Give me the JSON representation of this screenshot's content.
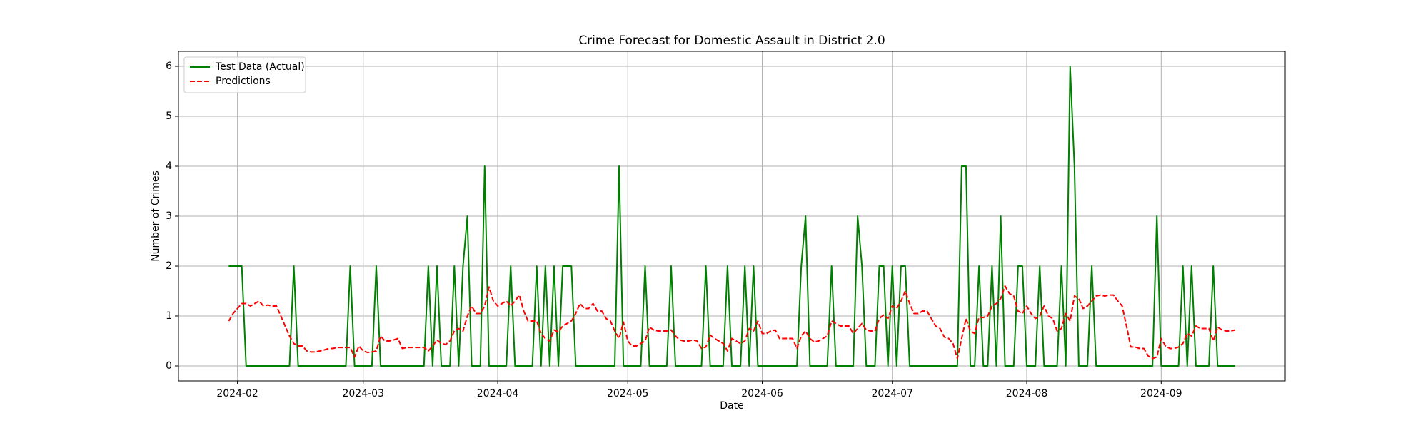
{
  "chart_data": {
    "type": "line",
    "title": "Crime Forecast for Domestic Assault in District 2.0",
    "xlabel": "Date",
    "ylabel": "Number of Crimes",
    "x": [
      "2024-01-30",
      "2024-01-31",
      "2024-02-01",
      "2024-02-02",
      "2024-02-03",
      "2024-02-04",
      "2024-02-05",
      "2024-02-06",
      "2024-02-07",
      "2024-02-08",
      "2024-02-09",
      "2024-02-10",
      "2024-02-11",
      "2024-02-12",
      "2024-02-13",
      "2024-02-14",
      "2024-02-15",
      "2024-02-16",
      "2024-02-17",
      "2024-02-18",
      "2024-02-19",
      "2024-02-20",
      "2024-02-21",
      "2024-02-22",
      "2024-02-23",
      "2024-02-24",
      "2024-02-25",
      "2024-02-26",
      "2024-02-27",
      "2024-02-28",
      "2024-02-29",
      "2024-03-01",
      "2024-03-02",
      "2024-03-03",
      "2024-03-04",
      "2024-03-05",
      "2024-03-06",
      "2024-03-07",
      "2024-03-08",
      "2024-03-09",
      "2024-03-10",
      "2024-03-11",
      "2024-03-12",
      "2024-03-13",
      "2024-03-14",
      "2024-03-15",
      "2024-03-16",
      "2024-03-17",
      "2024-03-18",
      "2024-03-19",
      "2024-03-20",
      "2024-03-21",
      "2024-03-22",
      "2024-03-23",
      "2024-03-24",
      "2024-03-25",
      "2024-03-26",
      "2024-03-27",
      "2024-03-28",
      "2024-03-29",
      "2024-03-30",
      "2024-03-31",
      "2024-04-01",
      "2024-04-02",
      "2024-04-03",
      "2024-04-04",
      "2024-04-05",
      "2024-04-06",
      "2024-04-07",
      "2024-04-08",
      "2024-04-09",
      "2024-04-10",
      "2024-04-11",
      "2024-04-12",
      "2024-04-13",
      "2024-04-14",
      "2024-04-15",
      "2024-04-16",
      "2024-04-17",
      "2024-04-18",
      "2024-04-19",
      "2024-04-20",
      "2024-04-21",
      "2024-04-22",
      "2024-04-23",
      "2024-04-24",
      "2024-04-25",
      "2024-04-26",
      "2024-04-27",
      "2024-04-28",
      "2024-04-29",
      "2024-04-30",
      "2024-05-01",
      "2024-05-02",
      "2024-05-03",
      "2024-05-04",
      "2024-05-05",
      "2024-05-06",
      "2024-05-07",
      "2024-05-08",
      "2024-05-09",
      "2024-05-10",
      "2024-05-11",
      "2024-05-12",
      "2024-05-13",
      "2024-05-14",
      "2024-05-15",
      "2024-05-16",
      "2024-05-17",
      "2024-05-18",
      "2024-05-19",
      "2024-05-20",
      "2024-05-21",
      "2024-05-22",
      "2024-05-23",
      "2024-05-24",
      "2024-05-25",
      "2024-05-26",
      "2024-05-27",
      "2024-05-28",
      "2024-05-29",
      "2024-05-30",
      "2024-05-31",
      "2024-06-01",
      "2024-06-02",
      "2024-06-03",
      "2024-06-04",
      "2024-06-05",
      "2024-06-06",
      "2024-06-07",
      "2024-06-08",
      "2024-06-09",
      "2024-06-10",
      "2024-06-11",
      "2024-06-12",
      "2024-06-13",
      "2024-06-14",
      "2024-06-15",
      "2024-06-16",
      "2024-06-17",
      "2024-06-18",
      "2024-06-19",
      "2024-06-20",
      "2024-06-21",
      "2024-06-22",
      "2024-06-23",
      "2024-06-24",
      "2024-06-25",
      "2024-06-26",
      "2024-06-27",
      "2024-06-28",
      "2024-06-29",
      "2024-06-30",
      "2024-07-01",
      "2024-07-02",
      "2024-07-03",
      "2024-07-04",
      "2024-07-05",
      "2024-07-06",
      "2024-07-07",
      "2024-07-08",
      "2024-07-09",
      "2024-07-10",
      "2024-07-11",
      "2024-07-12",
      "2024-07-13",
      "2024-07-14",
      "2024-07-15",
      "2024-07-16",
      "2024-07-17",
      "2024-07-18",
      "2024-07-19",
      "2024-07-20",
      "2024-07-21",
      "2024-07-22",
      "2024-07-23",
      "2024-07-24",
      "2024-07-25",
      "2024-07-26",
      "2024-07-27",
      "2024-07-28",
      "2024-07-29",
      "2024-07-30",
      "2024-07-31",
      "2024-08-01",
      "2024-08-02",
      "2024-08-03",
      "2024-08-04",
      "2024-08-05",
      "2024-08-06",
      "2024-08-07",
      "2024-08-08",
      "2024-08-09",
      "2024-08-10",
      "2024-08-11",
      "2024-08-12",
      "2024-08-13",
      "2024-08-14",
      "2024-08-15",
      "2024-08-16",
      "2024-08-17",
      "2024-08-18",
      "2024-08-19",
      "2024-08-20",
      "2024-08-21",
      "2024-08-22",
      "2024-08-23",
      "2024-08-24",
      "2024-08-25",
      "2024-08-26",
      "2024-08-27",
      "2024-08-28",
      "2024-08-29",
      "2024-08-30",
      "2024-08-31",
      "2024-09-01",
      "2024-09-02",
      "2024-09-03",
      "2024-09-04",
      "2024-09-05",
      "2024-09-06",
      "2024-09-07",
      "2024-09-08",
      "2024-09-09",
      "2024-09-10",
      "2024-09-11",
      "2024-09-12",
      "2024-09-13",
      "2024-09-14",
      "2024-09-15",
      "2024-09-16",
      "2024-09-17",
      "2024-09-18"
    ],
    "series": [
      {
        "name": "Test Data (Actual)",
        "color": "#008000",
        "dash": "solid",
        "values": [
          2,
          2,
          2,
          2,
          0,
          0,
          0,
          0,
          0,
          0,
          0,
          0,
          0,
          0,
          0,
          2,
          0,
          0,
          0,
          0,
          0,
          0,
          0,
          0,
          0,
          0,
          0,
          0,
          2,
          0,
          0,
          0,
          0,
          0,
          2,
          0,
          0,
          0,
          0,
          0,
          0,
          0,
          0,
          0,
          0,
          0,
          2,
          0,
          2,
          0,
          0,
          0,
          2,
          0,
          2,
          3,
          0,
          0,
          0,
          4,
          0,
          0,
          0,
          0,
          0,
          2,
          0,
          0,
          0,
          0,
          0,
          2,
          0,
          2,
          0,
          2,
          0,
          2,
          2,
          2,
          0,
          0,
          0,
          0,
          0,
          0,
          0,
          0,
          0,
          0,
          4,
          0,
          0,
          0,
          0,
          0,
          2,
          0,
          0,
          0,
          0,
          0,
          2,
          0,
          0,
          0,
          0,
          0,
          0,
          0,
          2,
          0,
          0,
          0,
          0,
          2,
          0,
          0,
          0,
          2,
          0,
          2,
          0,
          0,
          0,
          0,
          0,
          0,
          0,
          0,
          0,
          0,
          2,
          3,
          0,
          0,
          0,
          0,
          0,
          2,
          0,
          0,
          0,
          0,
          0,
          3,
          2,
          0,
          0,
          0,
          2,
          2,
          0,
          2,
          0,
          2,
          2,
          0,
          0,
          0,
          0,
          0,
          0,
          0,
          0,
          0,
          0,
          0,
          0,
          4,
          4,
          0,
          0,
          2,
          0,
          0,
          2,
          0,
          3,
          0,
          0,
          0,
          2,
          2,
          0,
          0,
          0,
          2,
          0,
          0,
          0,
          0,
          2,
          0,
          6,
          4,
          0,
          0,
          0,
          2,
          0,
          0,
          0,
          0,
          0,
          0,
          0,
          0,
          0,
          0,
          0,
          0,
          0,
          0,
          3,
          0,
          0,
          0,
          0,
          0,
          2,
          0,
          2,
          0,
          0,
          0,
          0,
          2,
          0,
          0,
          0,
          0,
          0
        ]
      },
      {
        "name": "Predictions",
        "color": "#ff0000",
        "dash": "dashed",
        "values": [
          0.9,
          1.05,
          1.15,
          1.25,
          1.25,
          1.2,
          1.25,
          1.3,
          1.2,
          1.22,
          1.2,
          1.2,
          1.0,
          0.8,
          0.6,
          0.45,
          0.4,
          0.4,
          0.3,
          0.28,
          0.28,
          0.3,
          0.32,
          0.35,
          0.35,
          0.37,
          0.37,
          0.37,
          0.37,
          0.18,
          0.4,
          0.3,
          0.27,
          0.28,
          0.3,
          0.6,
          0.5,
          0.5,
          0.52,
          0.55,
          0.35,
          0.37,
          0.37,
          0.37,
          0.37,
          0.37,
          0.3,
          0.4,
          0.52,
          0.45,
          0.43,
          0.5,
          0.7,
          0.75,
          0.7,
          1.0,
          1.2,
          1.05,
          1.05,
          1.2,
          1.58,
          1.3,
          1.2,
          1.25,
          1.3,
          1.2,
          1.3,
          1.42,
          1.1,
          0.9,
          0.9,
          0.9,
          0.65,
          0.55,
          0.5,
          0.72,
          0.68,
          0.8,
          0.85,
          0.9,
          1.05,
          1.25,
          1.15,
          1.15,
          1.25,
          1.1,
          1.1,
          0.95,
          0.9,
          0.7,
          0.55,
          0.88,
          0.5,
          0.4,
          0.4,
          0.45,
          0.5,
          0.78,
          0.72,
          0.7,
          0.7,
          0.7,
          0.72,
          0.6,
          0.52,
          0.5,
          0.5,
          0.52,
          0.5,
          0.35,
          0.38,
          0.62,
          0.55,
          0.5,
          0.45,
          0.3,
          0.55,
          0.5,
          0.45,
          0.5,
          0.75,
          0.7,
          0.9,
          0.65,
          0.65,
          0.7,
          0.72,
          0.55,
          0.55,
          0.55,
          0.55,
          0.35,
          0.6,
          0.7,
          0.55,
          0.48,
          0.5,
          0.55,
          0.6,
          0.9,
          0.85,
          0.8,
          0.8,
          0.8,
          0.65,
          0.75,
          0.85,
          0.72,
          0.7,
          0.7,
          0.95,
          1.02,
          0.95,
          1.2,
          1.15,
          1.3,
          1.5,
          1.25,
          1.05,
          1.05,
          1.1,
          1.1,
          0.95,
          0.8,
          0.75,
          0.58,
          0.55,
          0.45,
          0.15,
          0.55,
          0.95,
          0.7,
          0.65,
          0.98,
          0.97,
          1.0,
          1.2,
          1.25,
          1.35,
          1.6,
          1.45,
          1.4,
          1.1,
          1.05,
          1.2,
          1.05,
          0.95,
          1.0,
          1.2,
          1.0,
          0.95,
          0.7,
          0.75,
          1.05,
          0.9,
          1.4,
          1.35,
          1.15,
          1.2,
          1.3,
          1.4,
          1.42,
          1.4,
          1.42,
          1.42,
          1.3,
          1.2,
          0.8,
          0.38,
          0.38,
          0.35,
          0.35,
          0.2,
          0.15,
          0.18,
          0.55,
          0.4,
          0.35,
          0.35,
          0.38,
          0.45,
          0.65,
          0.6,
          0.8,
          0.75,
          0.75,
          0.75,
          0.5,
          0.78,
          0.72,
          0.7,
          0.7,
          0.72
        ]
      }
    ],
    "xlim": [
      "2024-01-18T09:36:00Z",
      "2024-09-29T14:24:00Z"
    ],
    "xticks": [
      {
        "value": "2024-02-01",
        "label": "2024-02"
      },
      {
        "value": "2024-03-01",
        "label": "2024-03"
      },
      {
        "value": "2024-04-01",
        "label": "2024-04"
      },
      {
        "value": "2024-05-01",
        "label": "2024-05"
      },
      {
        "value": "2024-06-01",
        "label": "2024-06"
      },
      {
        "value": "2024-07-01",
        "label": "2024-07"
      },
      {
        "value": "2024-08-01",
        "label": "2024-08"
      },
      {
        "value": "2024-09-01",
        "label": "2024-09"
      }
    ],
    "ylim": [
      -0.3,
      6.3
    ],
    "yticks": [
      0,
      1,
      2,
      3,
      4,
      5,
      6
    ],
    "grid": true,
    "legend": "upper left"
  }
}
